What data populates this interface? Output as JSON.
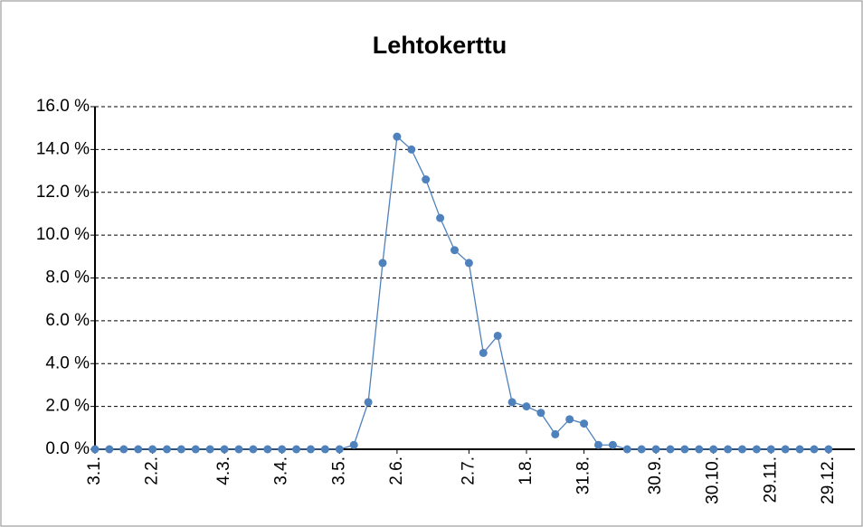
{
  "chart_data": {
    "type": "line",
    "title": "Lehtokerttu",
    "categories": [
      "3.1.",
      null,
      null,
      null,
      "2.2.",
      null,
      null,
      null,
      null,
      "4.3.",
      null,
      null,
      null,
      "3.4.",
      null,
      null,
      null,
      "3.5.",
      null,
      null,
      null,
      "2.6.",
      null,
      null,
      null,
      null,
      "2.7.",
      null,
      null,
      null,
      "1.8.",
      null,
      null,
      null,
      "31.8.",
      null,
      null,
      null,
      null,
      "30.9.",
      null,
      null,
      null,
      "30.10.",
      null,
      null,
      null,
      "29.11.",
      null,
      null,
      null,
      "29.12."
    ],
    "series": [
      {
        "name": "Lehtokerttu",
        "color": "#4f81bd",
        "values": [
          0,
          0,
          0,
          0,
          0,
          0,
          0,
          0,
          0,
          0,
          0,
          0,
          0,
          0,
          0,
          0,
          0,
          0,
          0.2,
          2.2,
          8.7,
          14.6,
          14.0,
          12.6,
          10.8,
          9.3,
          8.7,
          4.5,
          5.3,
          2.2,
          2.0,
          1.7,
          0.7,
          1.4,
          1.2,
          0.2,
          0.2,
          0,
          0,
          0,
          0,
          0,
          0,
          0,
          0,
          0,
          0,
          0,
          0,
          0,
          0,
          0
        ]
      }
    ],
    "ylim": [
      0,
      16
    ],
    "yticks": [
      {
        "value": 0,
        "label": "0.0 %"
      },
      {
        "value": 2,
        "label": "2.0 %"
      },
      {
        "value": 4,
        "label": "4.0 %"
      },
      {
        "value": 6,
        "label": "6.0 %"
      },
      {
        "value": 8,
        "label": "8.0 %"
      },
      {
        "value": 10,
        "label": "10.0 %"
      },
      {
        "value": 12,
        "label": "12.0 %"
      },
      {
        "value": 14,
        "label": "14.0 %"
      },
      {
        "value": 16,
        "label": "16.0 %"
      }
    ],
    "grid": true
  }
}
